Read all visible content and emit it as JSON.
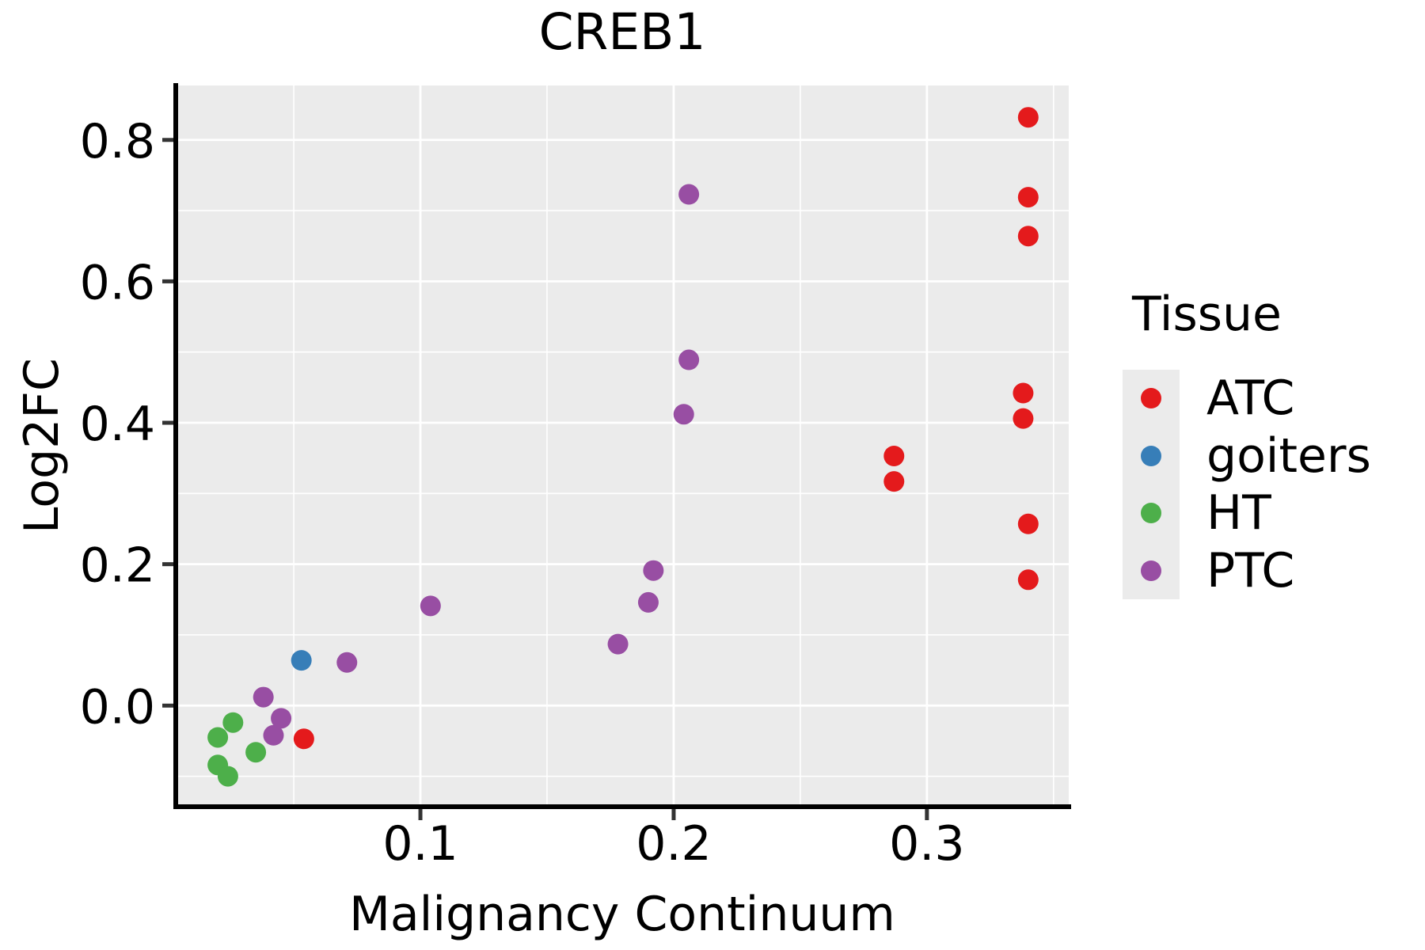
{
  "title": "CREB1",
  "chart_data": {
    "type": "scatter",
    "title": "CREB1",
    "xlabel": "Malignancy Continuum",
    "ylabel": "Log2FC",
    "legend_title": "Tissue",
    "legend_position": "right",
    "grid": true,
    "panel_bg": "#EBEBEB",
    "gridline_color": "#FFFFFF",
    "axis_line_color": "#000000",
    "tick_color": "#333333",
    "xlim": [
      0.0034,
      0.356
    ],
    "ylim": [
      -0.143,
      0.877
    ],
    "x_ticks": [
      {
        "value": 0.1,
        "label": "0.1"
      },
      {
        "value": 0.2,
        "label": "0.2"
      },
      {
        "value": 0.3,
        "label": "0.3"
      }
    ],
    "y_ticks": [
      {
        "value": 0.0,
        "label": "0.0"
      },
      {
        "value": 0.2,
        "label": "0.2"
      },
      {
        "value": 0.4,
        "label": "0.4"
      },
      {
        "value": 0.6,
        "label": "0.6"
      },
      {
        "value": 0.8,
        "label": "0.8"
      }
    ],
    "x_minor_gridlines": [
      0.05,
      0.15,
      0.25,
      0.35
    ],
    "y_minor_gridlines": [
      -0.1,
      0.1,
      0.3,
      0.5,
      0.7
    ],
    "series": [
      {
        "name": "ATC",
        "color": "#E41A1C",
        "points": [
          [
            0.054,
            -0.047
          ],
          [
            0.287,
            0.353
          ],
          [
            0.287,
            0.317
          ],
          [
            0.338,
            0.442
          ],
          [
            0.338,
            0.406
          ],
          [
            0.34,
            0.832
          ],
          [
            0.34,
            0.719
          ],
          [
            0.34,
            0.664
          ],
          [
            0.34,
            0.257
          ],
          [
            0.34,
            0.178
          ]
        ]
      },
      {
        "name": "goiters",
        "color": "#377EB8",
        "points": [
          [
            0.053,
            0.064
          ]
        ]
      },
      {
        "name": "HT",
        "color": "#4DAF4A",
        "points": [
          [
            0.02,
            -0.045
          ],
          [
            0.02,
            -0.084
          ],
          [
            0.024,
            -0.1
          ],
          [
            0.026,
            -0.024
          ],
          [
            0.035,
            -0.066
          ]
        ]
      },
      {
        "name": "PTC",
        "color": "#984EA3",
        "points": [
          [
            0.038,
            0.012
          ],
          [
            0.042,
            -0.042
          ],
          [
            0.045,
            -0.018
          ],
          [
            0.071,
            0.061
          ],
          [
            0.104,
            0.141
          ],
          [
            0.178,
            0.087
          ],
          [
            0.19,
            0.146
          ],
          [
            0.192,
            0.191
          ],
          [
            0.204,
            0.412
          ],
          [
            0.206,
            0.489
          ],
          [
            0.206,
            0.723
          ]
        ]
      }
    ]
  }
}
